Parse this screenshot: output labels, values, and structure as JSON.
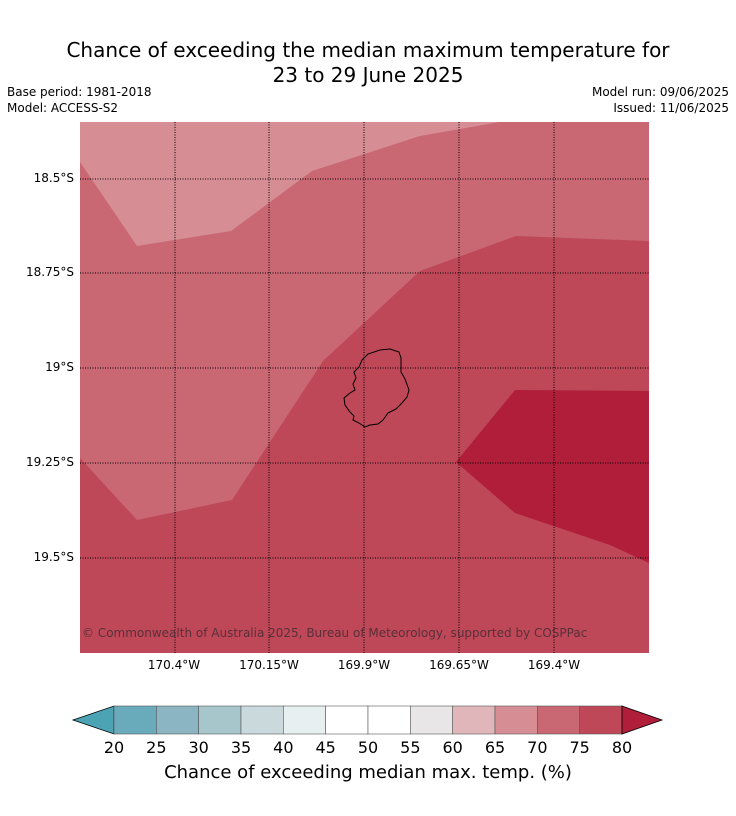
{
  "title_line1": "Chance of exceeding the median maximum temperature for",
  "title_line2": "23 to 29 June 2025",
  "base_period": "Base period: 1981-2018",
  "model": "Model: ACCESS-S2",
  "model_run": "Model run: 09/06/2025",
  "issued": "Issued: 11/06/2025",
  "lat_labels": [
    "18.5°S",
    "18.75°S",
    "19°S",
    "19.25°S",
    "19.5°S"
  ],
  "lon_labels": [
    "170.4°W",
    "170.15°W",
    "169.9°W",
    "169.65°W",
    "169.4°W"
  ],
  "copyright": "© Commonwealth of Australia 2025, Bureau of Meteorology, supported by COSPPac",
  "colorbar": {
    "title": "Chance of exceeding median max. temp. (%)",
    "ticks": [
      "20",
      "25",
      "30",
      "35",
      "40",
      "45",
      "50",
      "55",
      "60",
      "65",
      "70",
      "75",
      "80"
    ],
    "colors": [
      "#6aabbb",
      "#8bb5c2",
      "#a7c6cb",
      "#c9d9dc",
      "#e8eff1",
      "#ffffff",
      "#ffffff",
      "#e8e6e6",
      "#e0b6bb",
      "#d68d94",
      "#c96873",
      "#be4758"
    ],
    "under_color": "#4ba3b3",
    "over_color": "#b01e3a"
  },
  "map_colors": {
    "band_65_70": "#d68d94",
    "band_70_75": "#c96873",
    "band_75_80": "#be4758",
    "band_over_80": "#b01e3a",
    "island_outline": "#000000"
  }
}
